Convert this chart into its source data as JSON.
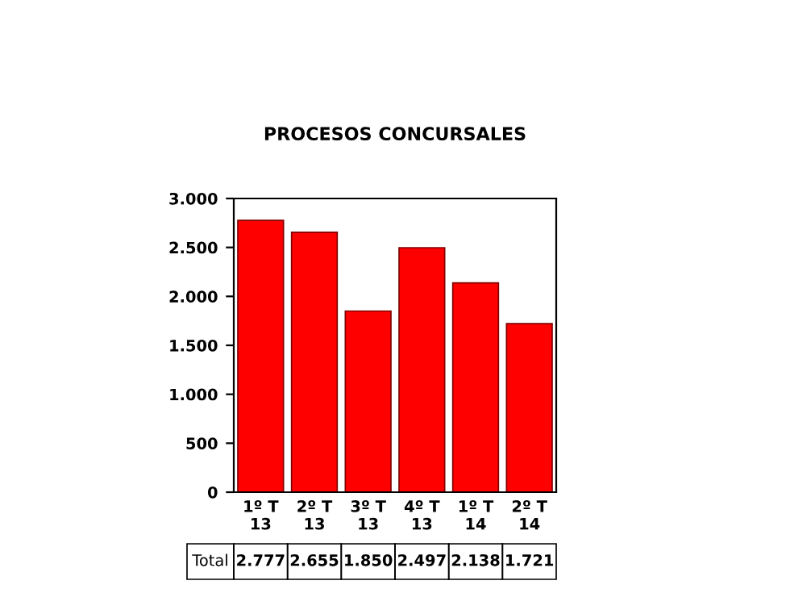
{
  "chart_data": {
    "type": "bar",
    "title": "PROCESOS CONCURSALES",
    "categories": [
      "1º T\n13",
      "2º T\n13",
      "3º T\n13",
      "4º T\n13",
      "1º T\n14",
      "2º T\n14"
    ],
    "series": [
      {
        "name": "Total",
        "color": "#ff0000",
        "values": [
          2777,
          2655,
          1850,
          2497,
          2138,
          1721
        ],
        "value_labels": [
          "2.777",
          "2.655",
          "1.850",
          "2.497",
          "2.138",
          "1.721"
        ]
      }
    ],
    "ylim": [
      0,
      3000
    ],
    "yticks": [
      0,
      {
        "value": 500,
        "label": "500"
      },
      {
        "value": 1000,
        "label": "1.000"
      },
      {
        "value": 1500,
        "label": "1.500"
      },
      {
        "value": 2000,
        "label": "2.000"
      },
      {
        "value": 2500,
        "label": "2.500"
      },
      {
        "value": 3000,
        "label": "3.000"
      }
    ],
    "grid": false,
    "legend": false
  }
}
